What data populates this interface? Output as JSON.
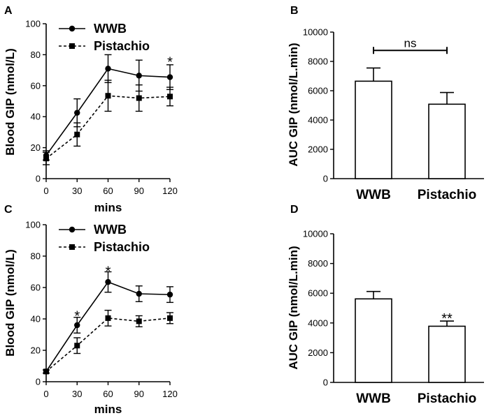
{
  "chart_data": [
    {
      "panel": "A",
      "type": "line",
      "xlabel": "mins",
      "ylabel": "Blood GIP (nmol/L)",
      "x": [
        0,
        30,
        60,
        90,
        120
      ],
      "xticks": [
        "0",
        "30",
        "60",
        "90",
        "120"
      ],
      "ylim": [
        0,
        100
      ],
      "yticks": [
        "0",
        "20",
        "40",
        "60",
        "80",
        "100"
      ],
      "legend_position": "top-left",
      "series": [
        {
          "name": "WWB",
          "values": [
            15,
            42.5,
            71,
            66.5,
            65.5
          ],
          "errors": [
            3,
            9,
            9,
            10,
            8
          ],
          "marker": "circle",
          "line": "solid"
        },
        {
          "name": "Pistachio",
          "values": [
            13,
            28.5,
            53.5,
            52,
            53
          ],
          "errors": [
            4,
            7.5,
            10,
            8.5,
            6
          ],
          "marker": "square",
          "line": "dashed"
        }
      ],
      "annotations": [
        {
          "x": 120,
          "y": 76,
          "text": "*"
        }
      ]
    },
    {
      "panel": "B",
      "type": "bar",
      "ylabel": "AUC GIP (nmol/L.min)",
      "categories": [
        "WWB",
        "Pistachio"
      ],
      "values": [
        6650,
        5080
      ],
      "errors": [
        900,
        800
      ],
      "ylim": [
        0,
        10000
      ],
      "yticks": [
        "0",
        "2000",
        "4000",
        "6000",
        "8000",
        "10000"
      ],
      "bracket": {
        "from": 0,
        "to": 1,
        "y": 8750,
        "label": "ns"
      }
    },
    {
      "panel": "C",
      "type": "line",
      "xlabel": "mins",
      "ylabel": "Blood GIP (nmol/L)",
      "x": [
        0,
        30,
        60,
        90,
        120
      ],
      "xticks": [
        "0",
        "30",
        "60",
        "90",
        "120"
      ],
      "ylim": [
        0,
        100
      ],
      "yticks": [
        "0",
        "20",
        "40",
        "60",
        "80",
        "100"
      ],
      "legend_position": "top-left",
      "series": [
        {
          "name": "WWB",
          "values": [
            6.5,
            36,
            63.5,
            56,
            55.5
          ],
          "errors": [
            1,
            5,
            6.5,
            5,
            5
          ],
          "marker": "circle",
          "line": "solid"
        },
        {
          "name": "Pistachio",
          "values": [
            6.5,
            23,
            40.5,
            38.5,
            40.5
          ],
          "errors": [
            1,
            5,
            5,
            3.5,
            3.5
          ],
          "marker": "square",
          "line": "dashed"
        }
      ],
      "annotations": [
        {
          "x": 30,
          "y": 42.5,
          "text": "*"
        },
        {
          "x": 60,
          "y": 71,
          "text": "*"
        }
      ]
    },
    {
      "panel": "D",
      "type": "bar",
      "ylabel": "AUC GIP (nmol/L.min)",
      "categories": [
        "WWB",
        "Pistachio"
      ],
      "values": [
        5620,
        3780
      ],
      "errors": [
        500,
        350
      ],
      "ylim": [
        0,
        10000
      ],
      "yticks": [
        "0",
        "2000",
        "4000",
        "6000",
        "8000",
        "10000"
      ],
      "bar_annotations": [
        {
          "index": 1,
          "text": "**"
        }
      ]
    }
  ]
}
